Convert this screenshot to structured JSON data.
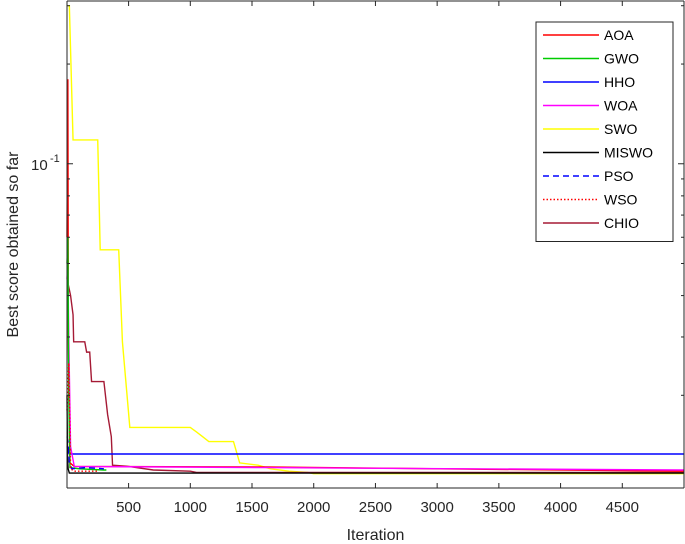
{
  "chart_data": {
    "type": "line",
    "title": "",
    "xlabel": "Iteration",
    "ylabel": "Best score obtained so far",
    "xlim": [
      1,
      5000
    ],
    "y_scale": "log",
    "ylim": [
      0.0105,
      0.31
    ],
    "grid": false,
    "legend_position": "top-right",
    "x_ticks": [
      500,
      1000,
      1500,
      2000,
      2500,
      3000,
      3500,
      4000,
      4500
    ],
    "y_ticks_labeled": [
      {
        "value": 0.1,
        "label": "10",
        "exp": "-1"
      }
    ],
    "y_minor_ticks": [
      0.02,
      0.03,
      0.04,
      0.05,
      0.06,
      0.07,
      0.08,
      0.09,
      0.2,
      0.3
    ],
    "series": [
      {
        "name": "AOA",
        "color": "#ff0000",
        "style": "solid",
        "x": [
          1,
          8,
          12,
          25,
          60,
          1600,
          4950,
          5000
        ],
        "y": [
          0.06,
          0.18,
          0.03,
          0.0125,
          0.0122,
          0.01215,
          0.0118,
          0.0118
        ]
      },
      {
        "name": "GWO",
        "color": "#00cc00",
        "style": "solid",
        "x": [
          1,
          8,
          15,
          25,
          100,
          300,
          320
        ],
        "y": [
          0.05,
          0.06,
          0.02,
          0.0121,
          0.012,
          0.0119,
          0.0119
        ]
      },
      {
        "name": "HHO",
        "color": "#0000ff",
        "style": "solid",
        "x": [
          1,
          10,
          20,
          5000
        ],
        "y": [
          0.014,
          0.0135,
          0.0133,
          0.0133
        ]
      },
      {
        "name": "WOA",
        "color": "#ff00ff",
        "style": "solid",
        "x": [
          1,
          8,
          15,
          30,
          60,
          1600,
          4950,
          5000
        ],
        "y": [
          0.045,
          0.05,
          0.03,
          0.014,
          0.0122,
          0.0121,
          0.0119,
          0.0119
        ]
      },
      {
        "name": "SWO",
        "color": "#ffff00",
        "style": "solid",
        "x": [
          1,
          20,
          50,
          250,
          270,
          420,
          450,
          510,
          1000,
          1050,
          1100,
          1150,
          1350,
          1400,
          1550,
          1650,
          1800,
          1950,
          2000,
          4950,
          5000
        ],
        "y": [
          0.3,
          0.3,
          0.118,
          0.118,
          0.055,
          0.055,
          0.029,
          0.016,
          0.016,
          0.0155,
          0.015,
          0.0145,
          0.0145,
          0.0125,
          0.0123,
          0.012,
          0.0118,
          0.0117,
          0.0116,
          0.0116,
          0.0116
        ]
      },
      {
        "name": "MISWO",
        "color": "#000000",
        "style": "solid",
        "x": [
          1,
          5,
          10,
          20,
          5000
        ],
        "y": [
          0.02,
          0.013,
          0.012,
          0.01165,
          0.01165
        ]
      },
      {
        "name": "PSO",
        "color": "#0000ff",
        "style": "dashed",
        "x": [
          1,
          8,
          20,
          40,
          150,
          300
        ],
        "y": [
          0.015,
          0.0145,
          0.0125,
          0.012,
          0.0121,
          0.012
        ]
      },
      {
        "name": "WSO",
        "color": "#ff0000",
        "style": "dotted",
        "x": [
          1,
          15,
          30,
          60,
          150,
          250
        ],
        "y": [
          0.018,
          0.025,
          0.012,
          0.0118,
          0.0118,
          0.0118
        ]
      },
      {
        "name": "CHIO",
        "color": "#a51a35",
        "style": "solid",
        "x": [
          1,
          30,
          50,
          55,
          145,
          160,
          185,
          200,
          300,
          330,
          360,
          370,
          500,
          700,
          1000,
          1050,
          5000
        ],
        "y": [
          0.045,
          0.04,
          0.035,
          0.029,
          0.029,
          0.027,
          0.027,
          0.022,
          0.022,
          0.0175,
          0.015,
          0.0123,
          0.0122,
          0.0119,
          0.0118,
          0.0117,
          0.0117
        ]
      }
    ]
  }
}
